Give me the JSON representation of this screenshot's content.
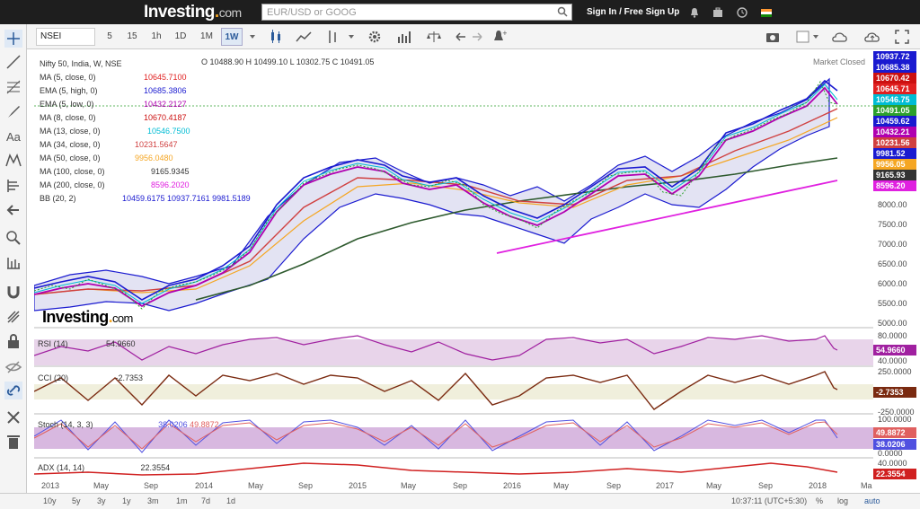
{
  "header": {
    "logo_text": "Investing",
    "logo_dot": ".",
    "logo_com": "com",
    "search_placeholder": "EUR/USD or GOOG",
    "signin": "Sign In / Free Sign Up"
  },
  "toolbar": {
    "symbol": "NSEI",
    "intervals": [
      "5",
      "15",
      "1h",
      "1D",
      "1M",
      "1W"
    ],
    "selected": "1W"
  },
  "legend": {
    "title": "Nifty 50, India, W, NSE",
    "ohlc": "O 10488.90  H 10499.10  L 10302.75  C 10491.05",
    "market_status": "Market Closed",
    "rows": [
      {
        "label": "MA (5, close, 0)",
        "value": "10645.7100",
        "color": "#e02020"
      },
      {
        "label": "EMA (5, high, 0)",
        "value": "10685.3806",
        "color": "#1a1ad0"
      },
      {
        "label": "EMA (5, low, 0)",
        "value": "10432.2127",
        "color": "#b000b0"
      },
      {
        "label": "MA (8, close, 0)",
        "value": "10670.4187",
        "color": "#cc1010"
      },
      {
        "label": "MA (13, close, 0)",
        "value": "10546.7500",
        "color": "#00bcd4"
      },
      {
        "label": "MA (34, close, 0)",
        "value": "10231.5647",
        "color": "#d04040"
      },
      {
        "label": "MA (50, close, 0)",
        "value": "9956.0480",
        "color": "#f5a623"
      },
      {
        "label": "MA (100, close, 0)",
        "value": "9165.9345",
        "color": "#333333"
      },
      {
        "label": "MA (200, close, 0)",
        "value": "8596.2020",
        "color": "#e020e0"
      },
      {
        "label": "BB (20, 2)",
        "value": "10459.6175  10937.7161  9981.5189",
        "color": "#1a1ad0"
      }
    ]
  },
  "price_labels": [
    {
      "v": "10937.72",
      "c": "#1a1ad0"
    },
    {
      "v": "10685.38",
      "c": "#1a1ad0"
    },
    {
      "v": "10670.42",
      "c": "#cc1010"
    },
    {
      "v": "10645.71",
      "c": "#e02020"
    },
    {
      "v": "10546.75",
      "c": "#00bcd4"
    },
    {
      "v": "10491.05",
      "c": "#2ca02c"
    },
    {
      "v": "10459.62",
      "c": "#1a1ad0"
    },
    {
      "v": "10432.21",
      "c": "#b000b0"
    },
    {
      "v": "10231.56",
      "c": "#d04040"
    },
    {
      "v": "9981.52",
      "c": "#1a1ad0"
    },
    {
      "v": "9956.05",
      "c": "#f5a623"
    },
    {
      "v": "9165.93",
      "c": "#333333"
    },
    {
      "v": "8596.20",
      "c": "#e020e0"
    }
  ],
  "price_axis": [
    "8000.00",
    "7500.00",
    "7000.00",
    "6500.00",
    "6000.00",
    "5500.00",
    "5000.00"
  ],
  "rsi": {
    "label": "RSI (14)",
    "value": "54.9660",
    "axis": [
      "80.0000",
      "40.0000"
    ],
    "current": "54.9660"
  },
  "cci": {
    "label": "CCI (20)",
    "value": "-2.7353",
    "axis": [
      "250.0000",
      "-250.0000"
    ],
    "current": "-2.7353"
  },
  "stoch": {
    "label": "Stoch (14, 3, 3)",
    "value1": "38.0206",
    "value2": "49.8872",
    "axis": [
      "100.0000",
      "0.0000"
    ],
    "current1": "49.8872",
    "current2": "38.0206"
  },
  "adx": {
    "label": "ADX (14, 14)",
    "value": "22.3554",
    "axis": [
      "40.0000"
    ],
    "current": "22.3554"
  },
  "time_axis": [
    "2013",
    "May",
    "Sep",
    "2014",
    "May",
    "Sep",
    "2015",
    "May",
    "Sep",
    "2016",
    "May",
    "Sep",
    "2017",
    "May",
    "Sep",
    "2018",
    "Ma"
  ],
  "bottom": {
    "ranges": [
      "10y",
      "5y",
      "3y",
      "1y",
      "3m",
      "1m",
      "7d",
      "1d"
    ],
    "time": "10:37:11 (UTC+5:30)",
    "pct": "%",
    "log": "log",
    "auto": "auto"
  },
  "watermark": {
    "brand": "Investing",
    "dot": ".",
    "com": "com"
  }
}
